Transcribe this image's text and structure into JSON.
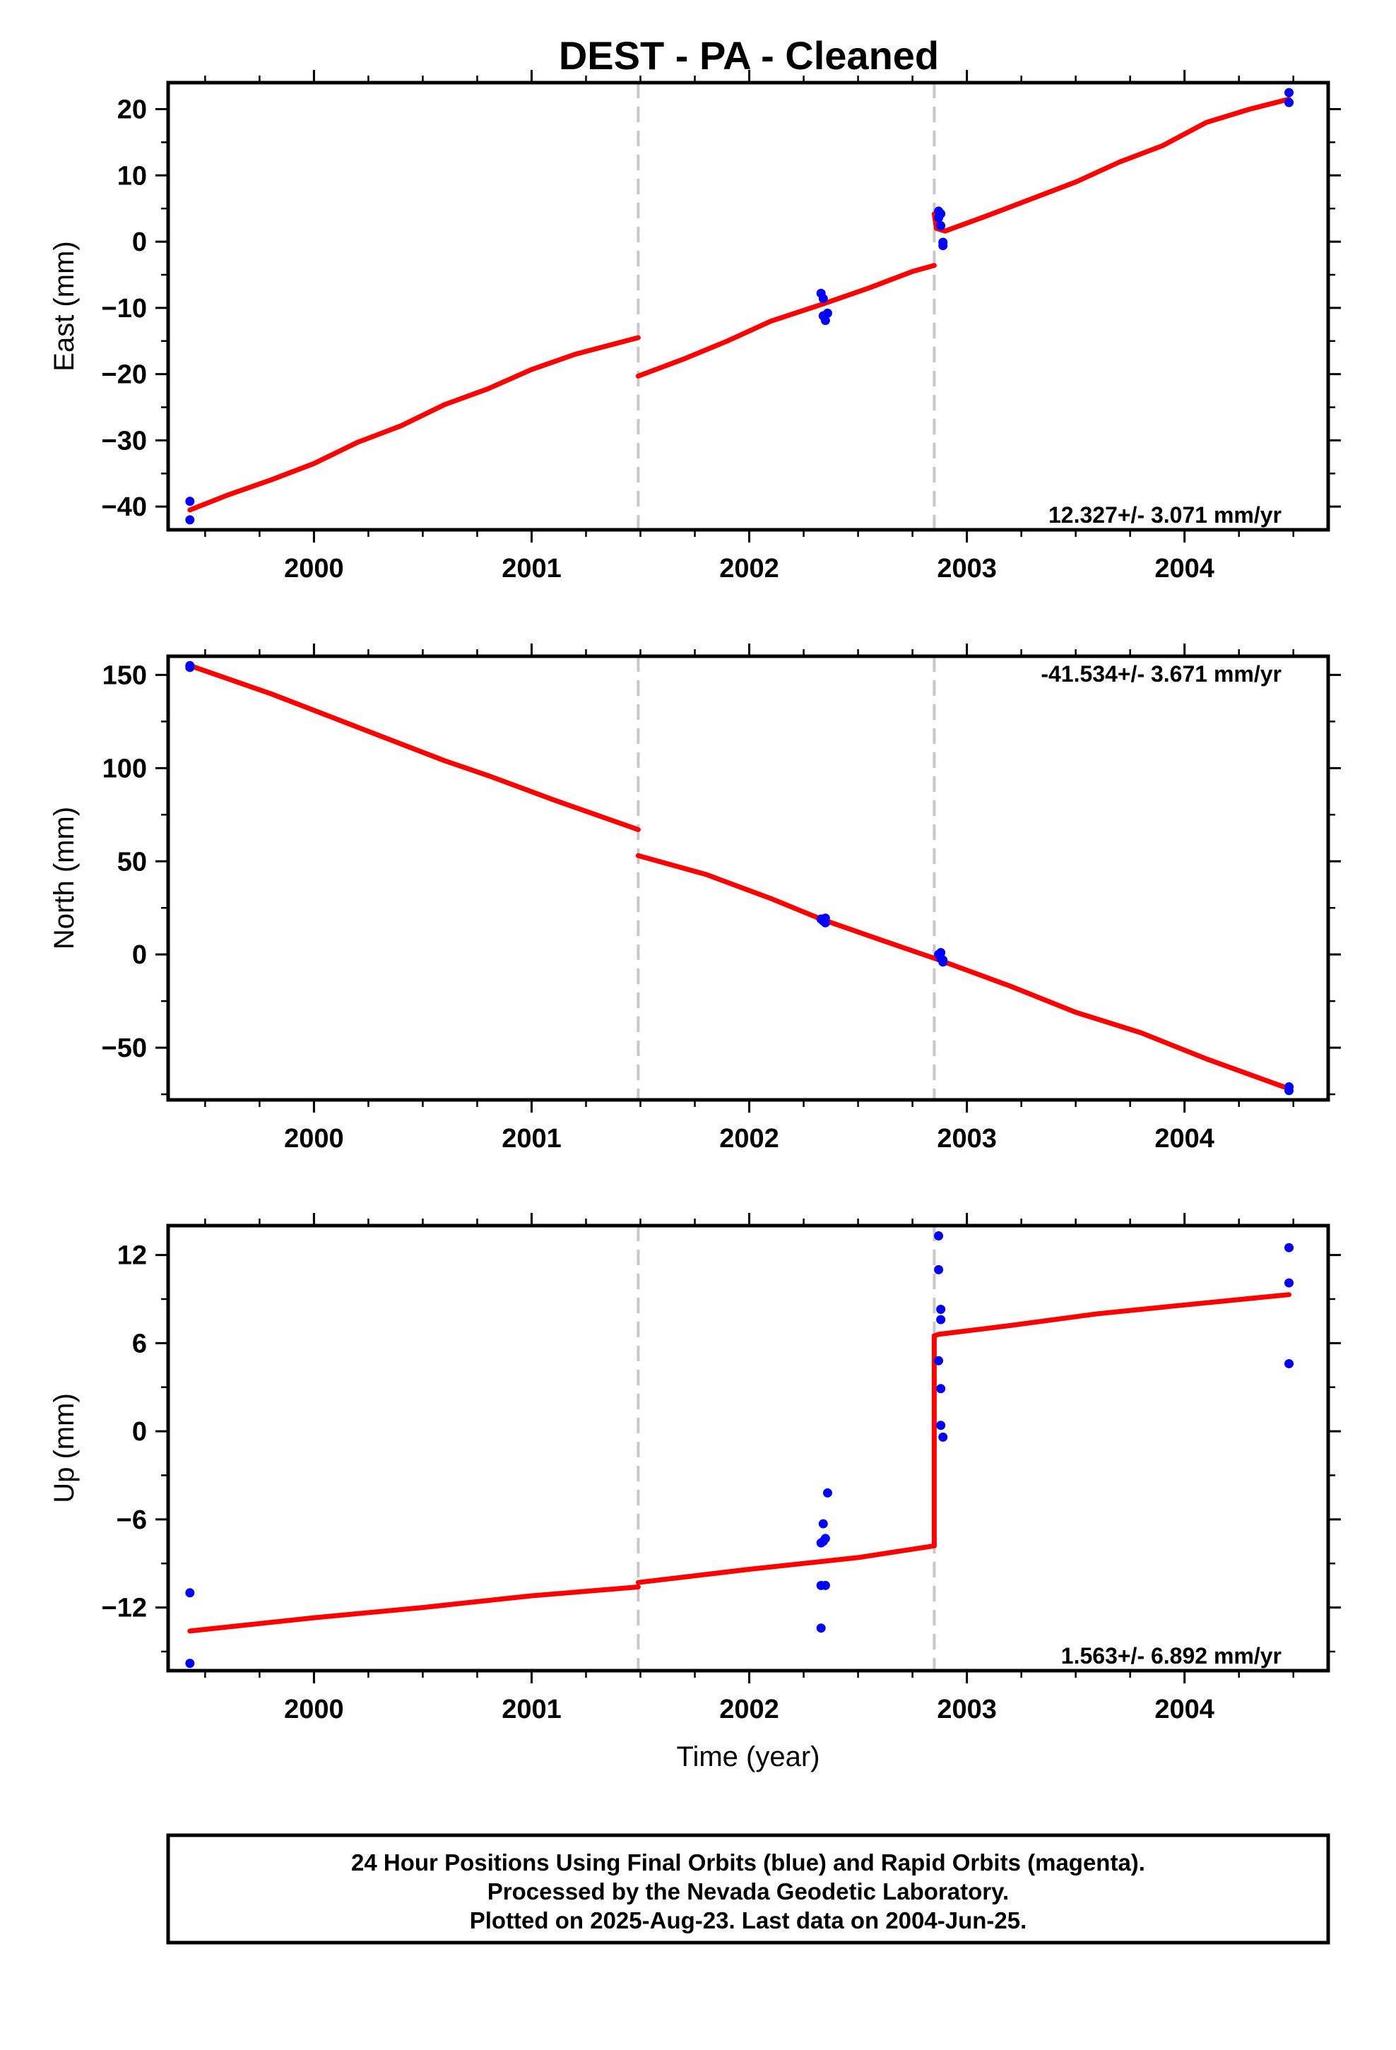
{
  "title": "DEST  - PA - Cleaned",
  "colors": {
    "model": "#ff0000",
    "final_orbits": "#0000ff",
    "breaks": "#c8c8c8",
    "axes": "#000000"
  },
  "footer": {
    "line1": "24 Hour Positions Using Final Orbits (blue) and Rapid Orbits (magenta).",
    "line2": "Processed by the Nevada Geodetic Laboratory.",
    "line3": "Plotted on 2025-Aug-23. Last data on 2004-Jun-25."
  },
  "chart_data": [
    {
      "type": "scatter",
      "ylabel": "East (mm)",
      "xlabel": "",
      "rate_text": "12.327+/- 3.071 mm/yr",
      "xlim": [
        1999.33,
        2004.66
      ],
      "ylim": [
        -43.5,
        24
      ],
      "xticks": [
        2000,
        2001,
        2002,
        2003,
        2004
      ],
      "xtick_labels": [
        "2000",
        "2001",
        "2002",
        "2003",
        "2004"
      ],
      "yticks": [
        -40,
        -30,
        -20,
        -10,
        0,
        10,
        20
      ],
      "ytick_labels": [
        "−40",
        "−30",
        "−20",
        "−10",
        "0",
        "10",
        "20"
      ],
      "breaks": [
        2001.49,
        2002.85
      ],
      "model_segments": [
        [
          [
            1999.43,
            -40.5
          ],
          [
            1999.6,
            -38.3
          ],
          [
            1999.8,
            -36.0
          ],
          [
            2000.0,
            -33.5
          ],
          [
            2000.2,
            -30.3
          ],
          [
            2000.4,
            -27.8
          ],
          [
            2000.6,
            -24.6
          ],
          [
            2000.8,
            -22.2
          ],
          [
            2001.0,
            -19.3
          ],
          [
            2001.2,
            -17.0
          ],
          [
            2001.49,
            -14.5
          ]
        ],
        [
          [
            2001.49,
            -20.3
          ],
          [
            2001.7,
            -17.7
          ],
          [
            2001.9,
            -15.0
          ],
          [
            2002.1,
            -12.0
          ],
          [
            2002.33,
            -9.5
          ],
          [
            2002.55,
            -7.0
          ],
          [
            2002.75,
            -4.5
          ],
          [
            2002.85,
            -3.6
          ]
        ],
        [
          [
            2002.85,
            4.2
          ],
          [
            2002.86,
            2.0
          ],
          [
            2002.9,
            1.6
          ],
          [
            2003.1,
            4.0
          ],
          [
            2003.3,
            6.5
          ],
          [
            2003.5,
            9.0
          ],
          [
            2003.7,
            12.0
          ],
          [
            2003.9,
            14.5
          ],
          [
            2004.1,
            18.0
          ],
          [
            2004.3,
            20.0
          ],
          [
            2004.48,
            21.5
          ]
        ]
      ],
      "points": [
        [
          1999.43,
          -39.2
        ],
        [
          1999.43,
          -42.0
        ],
        [
          2002.33,
          -7.8
        ],
        [
          2002.34,
          -8.6
        ],
        [
          2002.34,
          -11.2
        ],
        [
          2002.35,
          -11.9
        ],
        [
          2002.36,
          -10.8
        ],
        [
          2002.87,
          4.6
        ],
        [
          2002.87,
          3.6
        ],
        [
          2002.88,
          4.2
        ],
        [
          2002.88,
          2.4
        ],
        [
          2002.89,
          -0.1
        ],
        [
          2002.89,
          -0.6
        ],
        [
          2004.48,
          22.5
        ],
        [
          2004.48,
          21.0
        ]
      ]
    },
    {
      "type": "scatter",
      "ylabel": "North (mm)",
      "xlabel": "",
      "rate_text": "-41.534+/- 3.671 mm/yr",
      "xlim": [
        1999.33,
        2004.66
      ],
      "ylim": [
        -78,
        160
      ],
      "xticks": [
        2000,
        2001,
        2002,
        2003,
        2004
      ],
      "xtick_labels": [
        "2000",
        "2001",
        "2002",
        "2003",
        "2004"
      ],
      "yticks": [
        -50,
        0,
        50,
        100,
        150
      ],
      "ytick_labels": [
        "−50",
        "0",
        "50",
        "100",
        "150"
      ],
      "breaks": [
        2001.49,
        2002.85
      ],
      "model_segments": [
        [
          [
            1999.43,
            155.0
          ],
          [
            1999.8,
            140.0
          ],
          [
            2000.2,
            122.0
          ],
          [
            2000.6,
            104.0
          ],
          [
            2000.8,
            96.0
          ],
          [
            2001.1,
            83.0
          ],
          [
            2001.49,
            67.0
          ]
        ],
        [
          [
            2001.49,
            53.0
          ],
          [
            2001.8,
            43.0
          ],
          [
            2002.1,
            30.0
          ],
          [
            2002.33,
            19.0
          ],
          [
            2002.6,
            8.0
          ],
          [
            2002.85,
            -2.0
          ]
        ],
        [
          [
            2002.85,
            -2.0
          ],
          [
            2003.2,
            -17.0
          ],
          [
            2003.5,
            -31.0
          ],
          [
            2003.8,
            -42.0
          ],
          [
            2004.1,
            -56.0
          ],
          [
            2004.48,
            -72.0
          ]
        ]
      ],
      "points": [
        [
          1999.43,
          155.0
        ],
        [
          1999.43,
          154.0
        ],
        [
          2002.33,
          19.0
        ],
        [
          2002.34,
          18.0
        ],
        [
          2002.35,
          17.0
        ],
        [
          2002.35,
          19.5
        ],
        [
          2002.87,
          0.0
        ],
        [
          2002.88,
          -2.0
        ],
        [
          2002.88,
          1.0
        ],
        [
          2002.89,
          -3.0
        ],
        [
          2002.89,
          -4.0
        ],
        [
          2004.48,
          -71.0
        ],
        [
          2004.48,
          -73.0
        ]
      ]
    },
    {
      "type": "scatter",
      "ylabel": "Up (mm)",
      "xlabel": "Time (year)",
      "rate_text": "1.563+/- 6.892 mm/yr",
      "xlim": [
        1999.33,
        2004.66
      ],
      "ylim": [
        -16.3,
        14
      ],
      "xticks": [
        2000,
        2001,
        2002,
        2003,
        2004
      ],
      "xtick_labels": [
        "2000",
        "2001",
        "2002",
        "2003",
        "2004"
      ],
      "yticks": [
        -12,
        -6,
        0,
        6,
        12
      ],
      "ytick_labels": [
        "−12",
        "−6",
        "0",
        "6",
        "12"
      ],
      "breaks": [
        2001.49,
        2002.85
      ],
      "model_segments": [
        [
          [
            1999.43,
            -13.6
          ],
          [
            2000.0,
            -12.7
          ],
          [
            2000.5,
            -12.0
          ],
          [
            2001.0,
            -11.2
          ],
          [
            2001.49,
            -10.6
          ]
        ],
        [
          [
            2001.49,
            -10.3
          ],
          [
            2002.0,
            -9.4
          ],
          [
            2002.5,
            -8.6
          ],
          [
            2002.85,
            -7.8
          ]
        ],
        [
          [
            2002.85,
            -7.8
          ],
          [
            2002.85,
            6.5
          ],
          [
            2002.87,
            6.6
          ],
          [
            2003.2,
            7.2
          ],
          [
            2003.6,
            8.0
          ],
          [
            2004.0,
            8.6
          ],
          [
            2004.48,
            9.3
          ]
        ]
      ],
      "points": [
        [
          1999.43,
          -11.0
        ],
        [
          1999.43,
          -15.8
        ],
        [
          2002.33,
          -13.4
        ],
        [
          2002.33,
          -10.5
        ],
        [
          2002.33,
          -7.6
        ],
        [
          2002.34,
          -6.3
        ],
        [
          2002.34,
          -7.5
        ],
        [
          2002.35,
          -10.5
        ],
        [
          2002.35,
          -7.3
        ],
        [
          2002.36,
          -4.2
        ],
        [
          2002.87,
          13.3
        ],
        [
          2002.87,
          11.0
        ],
        [
          2002.88,
          8.3
        ],
        [
          2002.88,
          7.6
        ],
        [
          2002.87,
          4.8
        ],
        [
          2002.88,
          2.9
        ],
        [
          2002.88,
          0.4
        ],
        [
          2002.89,
          -0.4
        ],
        [
          2004.48,
          12.5
        ],
        [
          2004.48,
          10.1
        ],
        [
          2004.48,
          4.6
        ]
      ]
    }
  ]
}
